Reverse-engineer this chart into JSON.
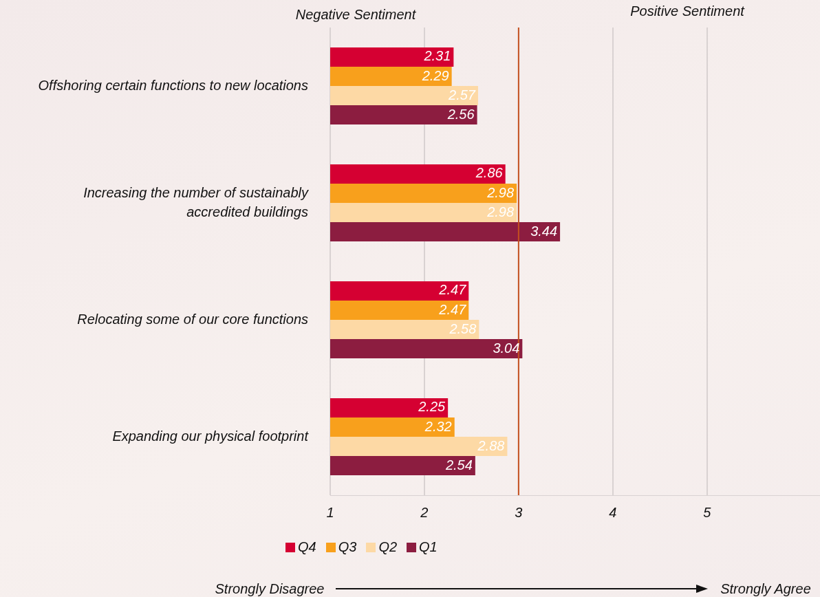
{
  "chart_data": {
    "type": "bar",
    "orientation": "horizontal",
    "categories": [
      "Offshoring certain functions to new locations",
      "Increasing the number of sustainably accredited buildings",
      "Relocating some of our core functions",
      "Expanding our physical footprint"
    ],
    "series": [
      {
        "name": "Q4",
        "color": "#d50032",
        "values": [
          2.31,
          2.86,
          2.47,
          2.25
        ]
      },
      {
        "name": "Q3",
        "color": "#f8a01c",
        "values": [
          2.29,
          2.98,
          2.47,
          2.32
        ]
      },
      {
        "name": "Q2",
        "color": "#fdd9a5",
        "values": [
          2.57,
          2.98,
          2.58,
          2.88
        ]
      },
      {
        "name": "Q1",
        "color": "#8c1d40",
        "values": [
          2.56,
          3.44,
          3.04,
          2.54
        ]
      }
    ],
    "xlim": [
      1,
      6.2
    ],
    "xticks": [
      1,
      2,
      3,
      4,
      5
    ],
    "grid": "x",
    "legend": "bottom",
    "data_labels": true,
    "ref_lines": [
      {
        "axis": "x",
        "value": 3,
        "color": "#c4501f"
      }
    ],
    "annotations": [
      "Negative Sentiment",
      "Positive Sentiment",
      "Strongly Disagree",
      "Strongly Agree"
    ]
  }
}
